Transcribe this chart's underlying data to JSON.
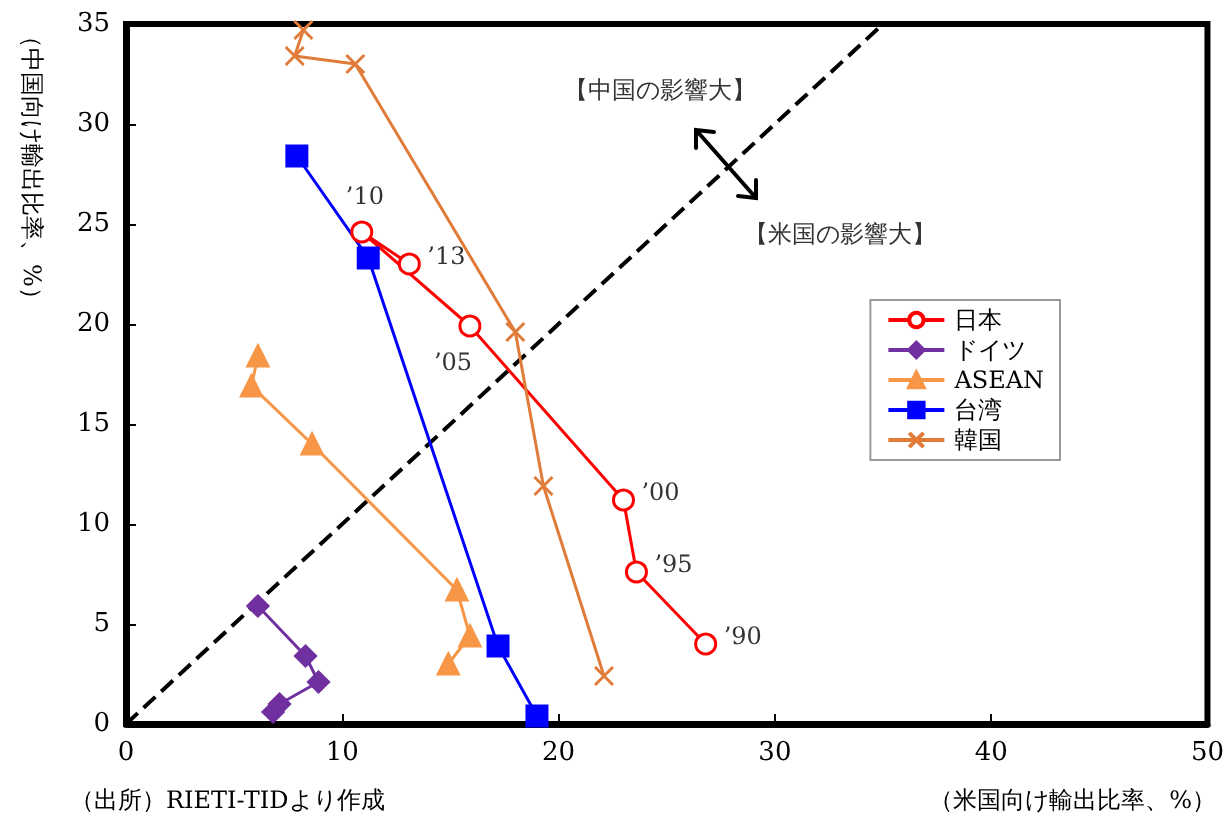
{
  "chart_data": {
    "type": "line",
    "xlabel": "（米国向け輸出比率、%）",
    "ylabel": "（中国向け輸出比率、%）",
    "xlim": [
      0,
      50
    ],
    "xticks": [
      0,
      10,
      20,
      30,
      40,
      50
    ],
    "ylim": [
      0,
      35
    ],
    "yticks": [
      0,
      5,
      10,
      15,
      20,
      25,
      30,
      35
    ],
    "grid": false,
    "legend": "right",
    "series": [
      {
        "name": "日本",
        "color": "#ff0000",
        "marker": "circle",
        "x": [
          26.8,
          23.6,
          23.0,
          15.9,
          10.9,
          13.1
        ],
        "values": [
          4.0,
          7.6,
          11.2,
          19.9,
          24.6,
          23.0
        ]
      },
      {
        "name": "ドイツ",
        "color": "#7030a0",
        "marker": "diamond",
        "x": [
          6.8,
          7.1,
          8.9,
          8.3,
          6.1
        ],
        "values": [
          0.6,
          1.0,
          2.1,
          3.4,
          5.9
        ]
      },
      {
        "name": "ASEAN",
        "color": "#f79646",
        "marker": "triangle",
        "x": [
          14.9,
          15.9,
          15.3,
          8.6,
          5.8,
          6.1
        ],
        "values": [
          3.0,
          4.4,
          6.7,
          14.0,
          16.9,
          18.4
        ]
      },
      {
        "name": "台湾",
        "color": "#0000ff",
        "marker": "square",
        "x": [
          19.0,
          17.2,
          11.2,
          7.9
        ],
        "values": [
          0.4,
          3.9,
          23.3,
          28.4
        ]
      },
      {
        "name": "韓国",
        "color": "#e07b39",
        "marker": "cross",
        "x": [
          22.1,
          19.3,
          18.0,
          10.6,
          7.8,
          8.2
        ],
        "values": [
          2.4,
          11.9,
          19.6,
          33.0,
          33.4,
          34.7
        ]
      },
      {
        "color": "#000000",
        "line_style": "dashed",
        "marker": "none",
        "x": [
          0,
          35
        ],
        "values": [
          0,
          35
        ]
      }
    ],
    "annotations": [
      {
        "text": "’90",
        "x": 26.8,
        "y": 4.0
      },
      {
        "text": "’95",
        "x": 23.6,
        "y": 7.6
      },
      {
        "text": "’00",
        "x": 23.0,
        "y": 11.2
      },
      {
        "text": "’05",
        "x": 15.9,
        "y": 19.9
      },
      {
        "text": "’10",
        "x": 10.9,
        "y": 24.6
      },
      {
        "text": "’13",
        "x": 13.1,
        "y": 23.0
      },
      "【中国の影響大】",
      "【米国の影響大】",
      "（出所）RIETI-TIDより作成"
    ]
  }
}
